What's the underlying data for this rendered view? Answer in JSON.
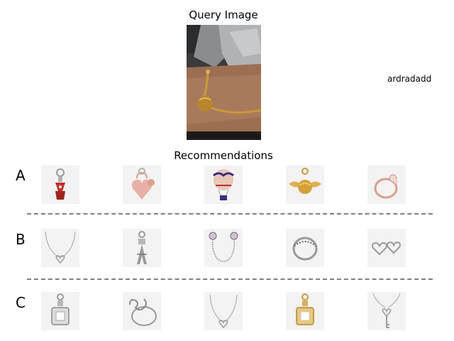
{
  "query": {
    "title": "Query Image",
    "image": "bracelet-on-wrist",
    "note": "ardradadd"
  },
  "recommendations": {
    "title": "Recommendations",
    "rows": [
      {
        "label": "A",
        "items": [
          "red-bow-dangle-charm",
          "pink-heart-padlock-charm",
          "hot-air-balloon-charm",
          "golden-snitch-charm",
          "rose-gold-ring"
        ]
      },
      {
        "label": "B",
        "items": [
          "heart-pendant-necklace",
          "eiffel-tower-charm",
          "safety-chain-charm",
          "silver-band-ring",
          "heart-stud-earrings"
        ]
      },
      {
        "label": "C",
        "items": [
          "square-halo-dangle-charm",
          "infinity-heart-ring",
          "heart-necklace",
          "gold-square-halo-charm",
          "key-pendant-necklace"
        ]
      }
    ]
  },
  "colors": {
    "divider": "#808080",
    "thumb_bg": "#f3f3f3",
    "gold": "#c89a3a",
    "rose": "#d9a08a",
    "silver": "#9a9a9a"
  }
}
